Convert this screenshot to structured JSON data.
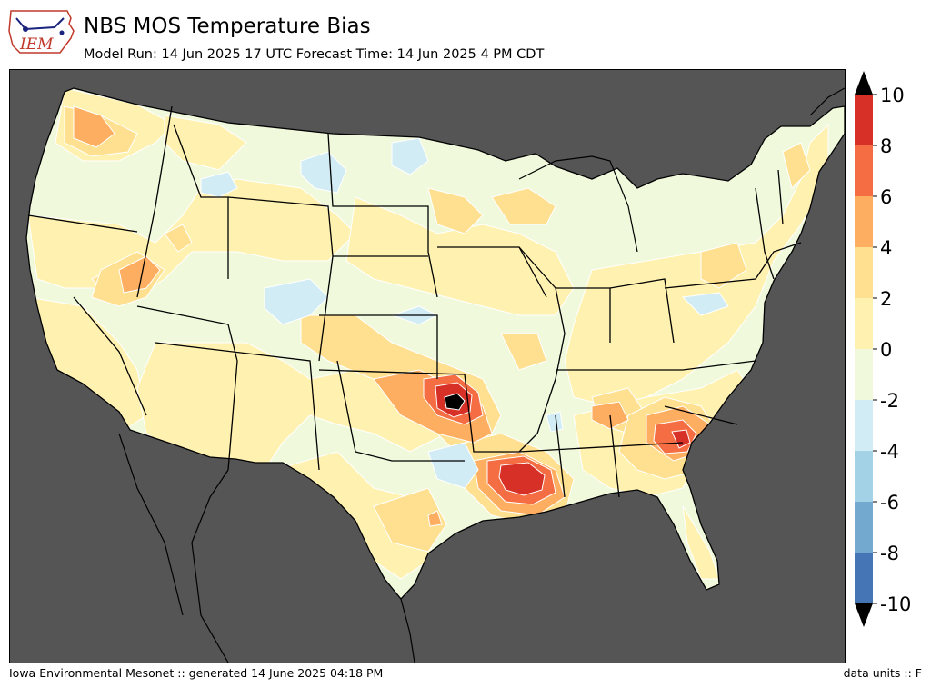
{
  "header": {
    "title": "NBS MOS Temperature Bias",
    "subtitle": "Model Run: 14 Jun 2025 17 UTC Forecast Time: 14 Jun 2025 4 PM CDT",
    "logo_text": "IEM"
  },
  "footer": {
    "left": "Iowa Environmental Mesonet :: generated 14 June 2025 04:18 PM",
    "right": "data units :: F"
  },
  "colors": {
    "background_land_other": "#555555",
    "base_land": "#f0f9dc"
  },
  "legend": {
    "ticks": [
      "10",
      "8",
      "6",
      "4",
      "2",
      "0",
      "-2",
      "-4",
      "-6",
      "-8",
      "-10"
    ],
    "bins": [
      {
        "range": "8 to 10",
        "color": "#d73027"
      },
      {
        "range": "6 to 8",
        "color": "#f46d43"
      },
      {
        "range": "4 to 6",
        "color": "#fdae61"
      },
      {
        "range": "2 to 4",
        "color": "#fee090"
      },
      {
        "range": "0 to 2",
        "color": "#fff2b0"
      },
      {
        "range": "-2 to 0",
        "color": "#f0f9dc"
      },
      {
        "range": "-4 to -2",
        "color": "#d1ecf4"
      },
      {
        "range": "-6 to -4",
        "color": "#a3d1e6"
      },
      {
        "range": "-8 to -6",
        "color": "#74a9cf"
      },
      {
        "range": "-10 to -8",
        "color": "#4575b4"
      }
    ],
    "over_color": "#000000",
    "under_color": "#000000"
  }
}
